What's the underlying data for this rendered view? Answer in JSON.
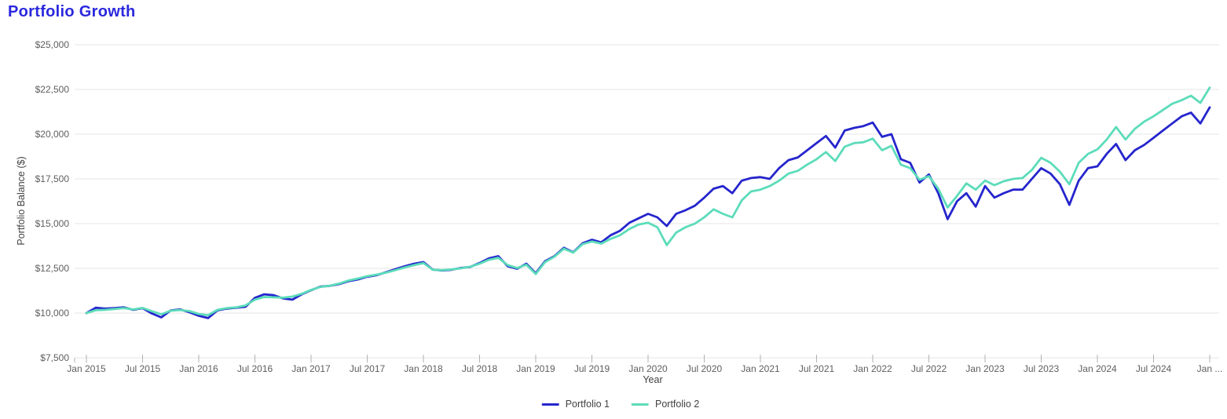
{
  "title": "Portfolio Growth",
  "chart_data": {
    "type": "line",
    "title": "Portfolio Growth",
    "xlabel": "Year",
    "ylabel": "Portfolio Balance ($)",
    "x_unit": "month",
    "x_range": [
      "Jan 2015",
      "Jan 2025"
    ],
    "points_per_series": 121,
    "ylim": [
      7500,
      25000
    ],
    "grid": "horizontal",
    "legend_position": "bottom",
    "colors": {
      "portfolio1": "#2525cd",
      "portfolio2": "#5cdcba",
      "gridline": "#e6e6e6",
      "tick_text": "#5e5e5e",
      "title_text": "#2a28dd"
    },
    "y_ticks": [
      {
        "value": 7500,
        "label": "$7,500"
      },
      {
        "value": 10000,
        "label": "$10,000"
      },
      {
        "value": 12500,
        "label": "$12,500"
      },
      {
        "value": 15000,
        "label": "$15,000"
      },
      {
        "value": 17500,
        "label": "$17,500"
      },
      {
        "value": 20000,
        "label": "$20,000"
      },
      {
        "value": 22500,
        "label": "$22,500"
      },
      {
        "value": 25000,
        "label": "$25,000"
      }
    ],
    "x_ticks": [
      {
        "month_index": 0,
        "label": "Jan 2015"
      },
      {
        "month_index": 6,
        "label": "Jul 2015"
      },
      {
        "month_index": 12,
        "label": "Jan 2016"
      },
      {
        "month_index": 18,
        "label": "Jul 2016"
      },
      {
        "month_index": 24,
        "label": "Jan 2017"
      },
      {
        "month_index": 30,
        "label": "Jul 2017"
      },
      {
        "month_index": 36,
        "label": "Jan 2018"
      },
      {
        "month_index": 42,
        "label": "Jul 2018"
      },
      {
        "month_index": 48,
        "label": "Jan 2019"
      },
      {
        "month_index": 54,
        "label": "Jul 2019"
      },
      {
        "month_index": 60,
        "label": "Jan 2020"
      },
      {
        "month_index": 66,
        "label": "Jul 2020"
      },
      {
        "month_index": 72,
        "label": "Jan 2021"
      },
      {
        "month_index": 78,
        "label": "Jul 2021"
      },
      {
        "month_index": 84,
        "label": "Jan 2022"
      },
      {
        "month_index": 90,
        "label": "Jul 2022"
      },
      {
        "month_index": 96,
        "label": "Jan 2023"
      },
      {
        "month_index": 102,
        "label": "Jul 2023"
      },
      {
        "month_index": 108,
        "label": "Jan 2024"
      },
      {
        "month_index": 114,
        "label": "Jul 2024"
      },
      {
        "month_index": 120,
        "label": "Jan ..."
      }
    ],
    "series": [
      {
        "name": "Portfolio 1",
        "color": "#2525cd",
        "values": [
          10000,
          10300,
          10250,
          10280,
          10320,
          10180,
          10270,
          9980,
          9760,
          10150,
          10200,
          10050,
          9850,
          9720,
          10150,
          10250,
          10300,
          10350,
          10850,
          11050,
          11000,
          10820,
          10750,
          11050,
          11280,
          11480,
          11520,
          11620,
          11780,
          11880,
          12030,
          12120,
          12280,
          12450,
          12620,
          12760,
          12850,
          12430,
          12380,
          12420,
          12520,
          12580,
          12800,
          13060,
          13180,
          12620,
          12480,
          12760,
          12230,
          12900,
          13180,
          13650,
          13400,
          13900,
          14100,
          13950,
          14350,
          14600,
          15050,
          15300,
          15550,
          15350,
          14870,
          15550,
          15750,
          16000,
          16450,
          16950,
          17100,
          16700,
          17400,
          17550,
          17600,
          17500,
          18100,
          18550,
          18700,
          19100,
          19500,
          19900,
          19250,
          20200,
          20350,
          20450,
          20650,
          19850,
          20000,
          18600,
          18400,
          17300,
          17750,
          16700,
          15250,
          16250,
          16700,
          15950,
          17100,
          16450,
          16700,
          16900,
          16900,
          17500,
          18100,
          17800,
          17200,
          16050,
          17400,
          18100,
          18200,
          18900,
          19450,
          18550,
          19100,
          19400,
          19800,
          20200,
          20600,
          21000,
          21200,
          20600,
          21500
        ]
      },
      {
        "name": "Portfolio 2",
        "color": "#5cdcba",
        "values": [
          10000,
          10160,
          10180,
          10230,
          10280,
          10200,
          10290,
          10100,
          9930,
          10130,
          10170,
          10110,
          9950,
          9880,
          10180,
          10280,
          10320,
          10430,
          10750,
          10900,
          10880,
          10860,
          10920,
          11080,
          11300,
          11460,
          11530,
          11650,
          11820,
          11930,
          12060,
          12150,
          12260,
          12400,
          12550,
          12680,
          12800,
          12420,
          12400,
          12440,
          12500,
          12590,
          12760,
          12980,
          13090,
          12680,
          12520,
          12700,
          12180,
          12850,
          13150,
          13600,
          13380,
          13850,
          14000,
          13880,
          14150,
          14350,
          14700,
          14950,
          15050,
          14800,
          13800,
          14500,
          14800,
          15000,
          15350,
          15800,
          15550,
          15350,
          16300,
          16800,
          16900,
          17100,
          17400,
          17800,
          17950,
          18300,
          18600,
          19000,
          18500,
          19300,
          19500,
          19550,
          19750,
          19100,
          19350,
          18300,
          18100,
          17450,
          17650,
          16950,
          15900,
          16550,
          17250,
          16900,
          17410,
          17150,
          17370,
          17500,
          17550,
          18000,
          18680,
          18400,
          17900,
          17200,
          18400,
          18900,
          19150,
          19700,
          20400,
          19700,
          20300,
          20700,
          21000,
          21350,
          21700,
          21900,
          22150,
          21750,
          22600
        ]
      }
    ]
  }
}
